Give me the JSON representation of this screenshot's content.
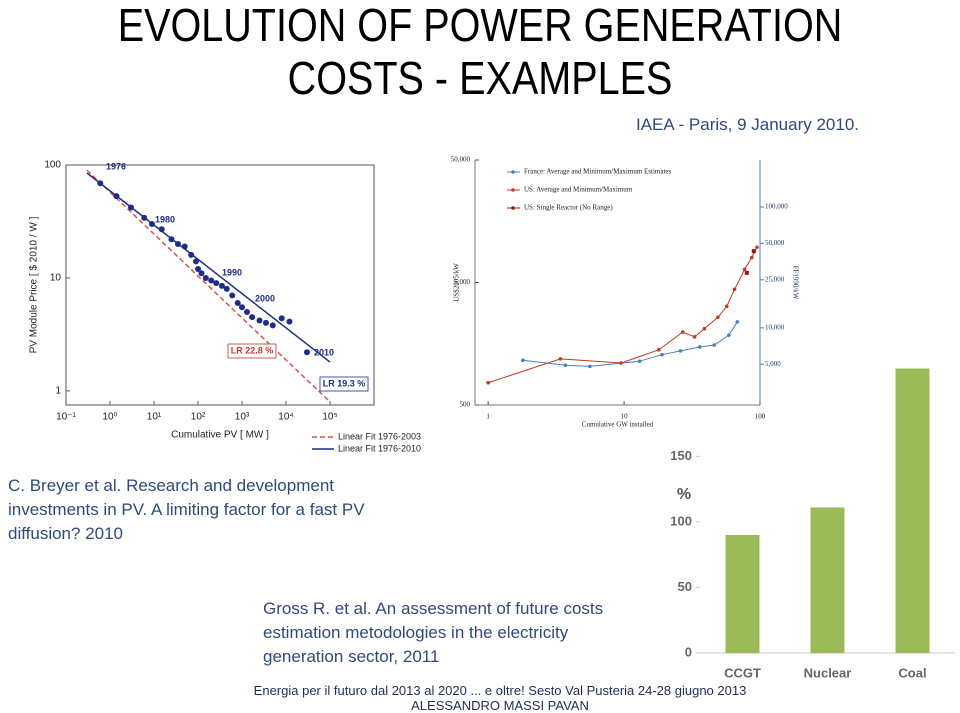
{
  "header": {
    "title_lines": [
      "EVOLUTION OF POWER GENERATION",
      "COSTS - EXAMPLES"
    ],
    "subtitle": "IAEA - Paris, 9 January 2010."
  },
  "captions": [
    "C. Breyer et al. Research and development investments in PV. A limiting factor for a fast PV diffusion? 2010",
    "Gross R. et al. An assessment of future costs estimation metodologies in the electricity generation sector, 2011"
  ],
  "footer": {
    "line1": "Energia per il futuro dal 2013 al 2020 ... e oltre! Sesto Val Pusteria 24-28 giugno 2013",
    "line2": "ALESSANDRO MASSI PAVAN"
  },
  "chart_data": [
    {
      "type": "scatter",
      "xlabel": "Cumulative PV [ MW ]",
      "ylabel": "PV Module Price [ $ 2010 / W ]",
      "log_x": true,
      "log_y": true,
      "xlim": [
        0.1,
        1000000
      ],
      "ylim": [
        0.75,
        100
      ],
      "xticks": [
        {
          "value": 0.1,
          "label": "10⁻¹"
        },
        {
          "value": 1,
          "label": "10⁰"
        },
        {
          "value": 10,
          "label": "10¹"
        },
        {
          "value": 100,
          "label": "10²"
        },
        {
          "value": 1000,
          "label": "10³"
        },
        {
          "value": 10000,
          "label": "10⁴"
        },
        {
          "value": 100000,
          "label": "10⁵"
        }
      ],
      "yticks": [
        1,
        10,
        100
      ],
      "color": "#1f2d8a",
      "x": [
        0.6,
        1.4,
        3,
        6,
        9,
        15,
        25,
        35,
        50,
        70,
        90,
        100,
        120,
        150,
        200,
        260,
        350,
        450,
        600,
        800,
        1000,
        1300,
        1700,
        2500,
        3500,
        5000,
        8000,
        12000,
        30000
      ],
      "values": [
        69,
        53,
        42,
        34,
        30,
        27,
        22,
        20,
        19,
        16,
        14,
        12,
        11,
        10,
        9.5,
        9,
        8.5,
        8,
        7,
        6,
        5.5,
        5,
        4.5,
        4.2,
        4.0,
        3.8,
        4.4,
        4.1,
        2.2
      ],
      "fits": [
        {
          "name": "Linear Fit 1976-2003",
          "color": "#d9534f",
          "dashed": true,
          "x": [
            0.3,
            100000
          ],
          "values": [
            90,
            0.8
          ]
        },
        {
          "name": "Linear Fit 1976-2010",
          "color": "#1f2d8a",
          "dashed": false,
          "x": [
            0.3,
            100000
          ],
          "values": [
            85,
            1.8
          ]
        }
      ],
      "annotations": [
        "1976",
        "1980",
        "1990",
        "2000",
        "2010",
        "LR 22.8 %",
        "LR 19.3 %"
      ]
    },
    {
      "type": "scatter",
      "xlabel": "Cumulative GW installed",
      "ylabel": "US$2005/kW",
      "y2label": "FF1990/kW",
      "log_x": true,
      "log_y": true,
      "xlim": [
        0.8,
        100
      ],
      "ylim": [
        500,
        50000
      ],
      "y2lim": [
        2300,
        245000
      ],
      "xticks": [
        1,
        10,
        100
      ],
      "yticks": [
        500,
        {
          "value": 5000,
          "label": "5,000"
        },
        {
          "value": 50000,
          "label": "50,000"
        }
      ],
      "y2ticks": [
        {
          "value": 5000,
          "label": "5,000"
        },
        {
          "value": 10000,
          "label": "10,000"
        },
        {
          "value": 25000,
          "label": "25,000"
        },
        {
          "value": 50000,
          "label": "50,000"
        },
        {
          "value": 100000,
          "label": "100,000"
        }
      ],
      "series": [
        {
          "name": "France: Average and Minimum/Maximum Estimates",
          "color": "#4a7fc1",
          "axis": "y2",
          "x": [
            1.8,
            3.7,
            5.6,
            13,
            19,
            26,
            36,
            46,
            59,
            68
          ],
          "values": [
            5400,
            4900,
            4800,
            5300,
            6000,
            6450,
            6950,
            7200,
            8700,
            11200
          ]
        },
        {
          "name": "US: Average and Minimum/Maximum",
          "color": "#c0392b",
          "x": [
            1,
            3.4,
            9.5,
            18,
            27,
            33,
            39,
            49,
            57,
            65,
            77,
            87,
            95
          ],
          "values": [
            760,
            1190,
            1100,
            1410,
            1970,
            1800,
            2100,
            2600,
            3200,
            4400,
            6400,
            8000,
            9700
          ]
        },
        {
          "name": "US: Single Reactor (No Range)",
          "color": "#a01010",
          "x": [
            80,
            90
          ],
          "values": [
            6000,
            9000
          ]
        }
      ]
    },
    {
      "type": "bar",
      "ylabel": "%",
      "categories": [
        "CCGT",
        "Nuclear",
        "Coal"
      ],
      "values": [
        90,
        111,
        217
      ],
      "ylim": [
        0,
        225
      ],
      "yticks": [
        0,
        50,
        100,
        150
      ],
      "color": "#9bbb59"
    }
  ]
}
